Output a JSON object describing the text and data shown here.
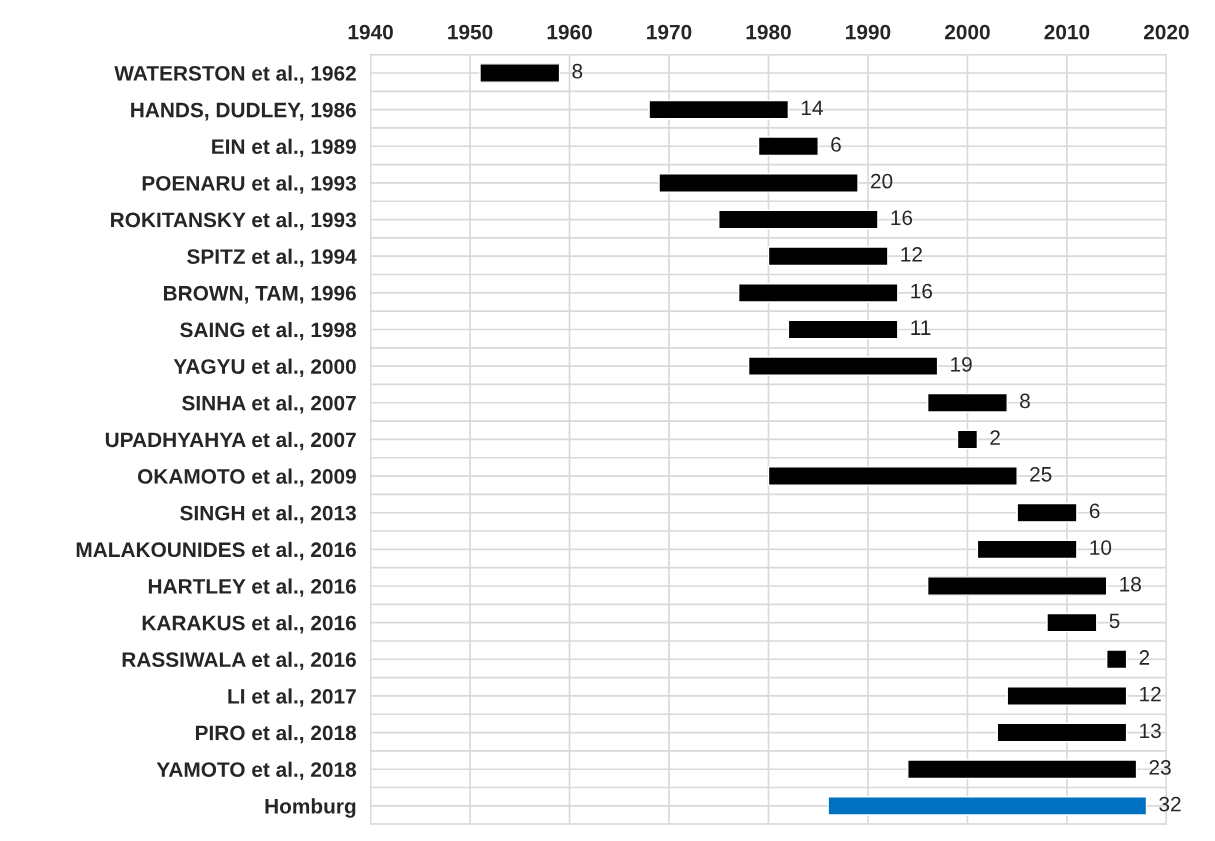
{
  "chart_data": {
    "type": "bar",
    "orientation": "horizontal",
    "categories": [
      "WATERSTON et al., 1962",
      "HANDS, DUDLEY, 1986",
      "EIN et al., 1989",
      "POENARU et al., 1993",
      "ROKITANSKY et al., 1993",
      "SPITZ et al., 1994",
      "BROWN, TAM, 1996",
      "SAING et al., 1998",
      "YAGYU et al., 2000",
      "SINHA et al., 2007",
      "UPADHYAHYA et al., 2007",
      "OKAMOTO et al., 2009",
      "SINGH et al., 2013",
      "MALAKOUNIDES et al., 2016",
      "HARTLEY et al., 2016",
      "KARAKUS et al., 2016",
      "RASSIWALA et al., 2016",
      "LI et al., 2017",
      "PIRO et al., 2018",
      "YAMOTO et al., 2018",
      "Homburg"
    ],
    "base": [
      1951,
      1968,
      1979,
      1969,
      1975,
      1980,
      1977,
      1982,
      1978,
      1996,
      1999,
      1980,
      2005,
      2001,
      1996,
      2008,
      2014,
      2004,
      2003,
      1994,
      1986
    ],
    "values": [
      8,
      14,
      6,
      20,
      16,
      12,
      16,
      11,
      19,
      8,
      2,
      25,
      6,
      10,
      18,
      5,
      2,
      12,
      13,
      23,
      32
    ],
    "colors": [
      "#000000",
      "#000000",
      "#000000",
      "#000000",
      "#000000",
      "#000000",
      "#000000",
      "#000000",
      "#000000",
      "#000000",
      "#000000",
      "#000000",
      "#000000",
      "#000000",
      "#000000",
      "#000000",
      "#000000",
      "#000000",
      "#000000",
      "#000000",
      "#0070c0"
    ],
    "data_labels": true,
    "xlim": [
      1940,
      2020
    ],
    "xticks": [
      1940,
      1950,
      1960,
      1970,
      1980,
      1990,
      2000,
      2010,
      2020
    ],
    "grid": true
  }
}
